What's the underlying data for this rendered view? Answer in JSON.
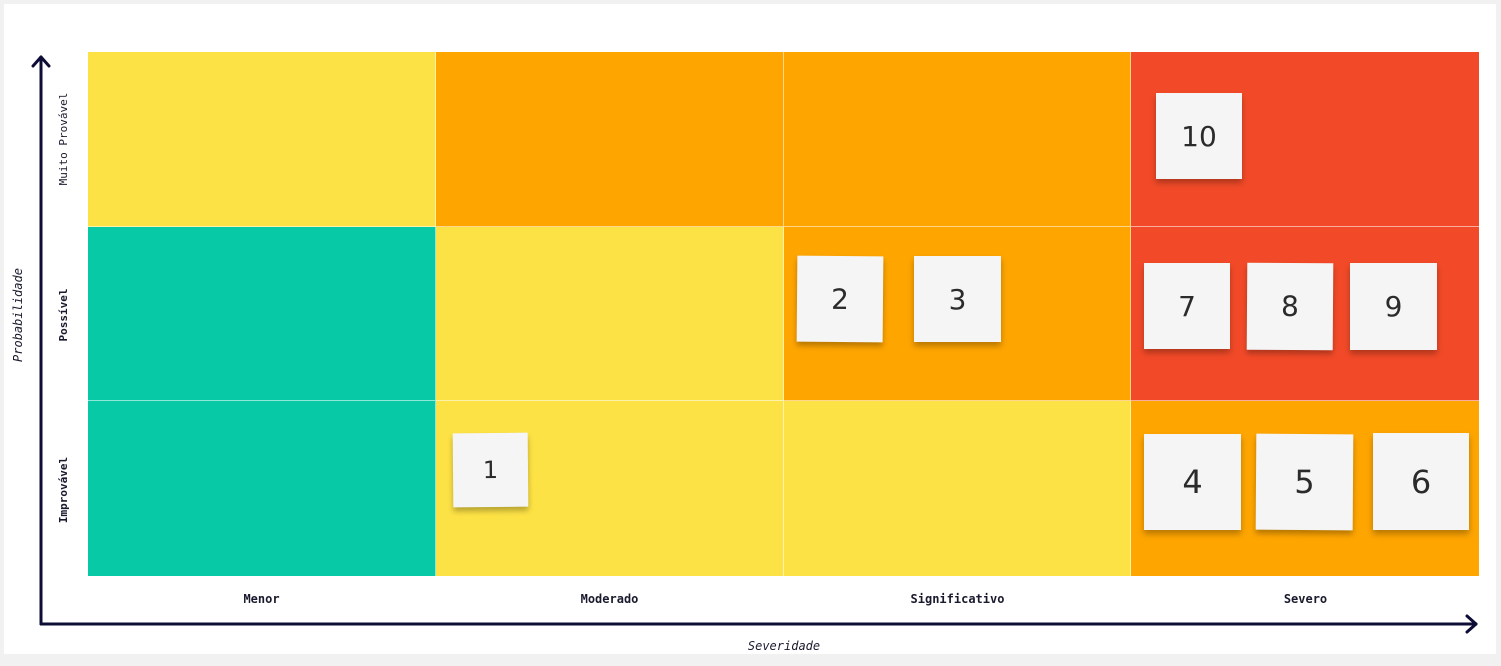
{
  "axes": {
    "y_title": "Probabilidade",
    "x_title": "Severidade",
    "y_levels": [
      "Muito Provável",
      "Possível",
      "Improvável"
    ],
    "x_levels": [
      "Menor",
      "Moderado",
      "Significativo",
      "Severo"
    ]
  },
  "colors": {
    "green": "#08c9a6",
    "yellow": "#fde245",
    "orange": "#fea500",
    "red": "#f24a28",
    "axis": "#0d0d36"
  },
  "grid": [
    [
      "yellow",
      "orange",
      "orange",
      "red"
    ],
    [
      "green",
      "yellow",
      "orange",
      "red"
    ],
    [
      "green",
      "yellow",
      "yellow",
      "orange"
    ]
  ],
  "notes": [
    {
      "label": "10",
      "row": 0,
      "col": 3
    },
    {
      "label": "2",
      "row": 1,
      "col": 2
    },
    {
      "label": "3",
      "row": 1,
      "col": 2
    },
    {
      "label": "7",
      "row": 1,
      "col": 3
    },
    {
      "label": "8",
      "row": 1,
      "col": 3
    },
    {
      "label": "9",
      "row": 1,
      "col": 3
    },
    {
      "label": "1",
      "row": 2,
      "col": 1
    },
    {
      "label": "4",
      "row": 2,
      "col": 3
    },
    {
      "label": "5",
      "row": 2,
      "col": 3
    },
    {
      "label": "6",
      "row": 2,
      "col": 3
    }
  ]
}
